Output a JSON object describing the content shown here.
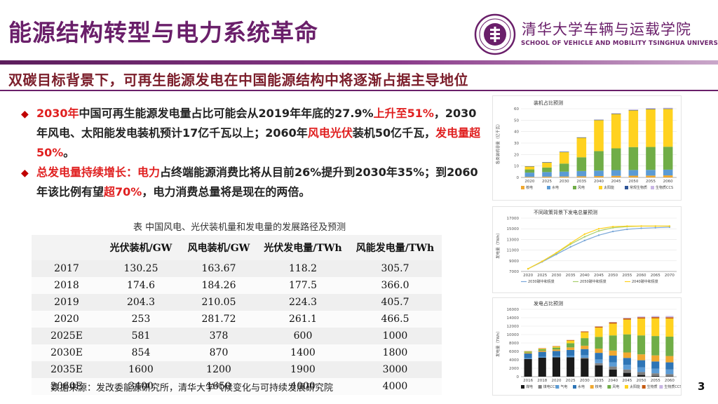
{
  "header": {
    "title": "能源结构转型与电力系统革命",
    "school_cn": "清华大学车辆与运载学院",
    "school_en": "SCHOOL OF VEHICLE AND MOBILITY TSINGHUA UNIVERSITY"
  },
  "subtitle": "双碳目标背景下，可再生能源发电在中国能源结构中将逐渐占据主导地位",
  "bullets": [
    {
      "parts": [
        {
          "t": "2030年",
          "red": true
        },
        {
          "t": "中国可再生能源发电量占比可能会从2019年年底的27.9%",
          "red": false
        },
        {
          "t": "上升至51%",
          "red": true
        },
        {
          "t": "，2030年风电、太阳能发电装机预计17亿千瓦以上；2060年",
          "red": false
        },
        {
          "t": "风电光伏",
          "red": true
        },
        {
          "t": "装机50亿千瓦，",
          "red": false
        },
        {
          "t": "发电量超50%",
          "red": true
        },
        {
          "t": "。",
          "red": false
        }
      ]
    },
    {
      "parts": [
        {
          "t": "总发电量持续增长：",
          "red": true
        },
        {
          "t": "电力",
          "red": true
        },
        {
          "t": "占终端能源消费比将从目前26%提升到2030年35%；到2060年该比例有望",
          "red": false
        },
        {
          "t": "超70%",
          "red": true
        },
        {
          "t": "，电力消费总量将是现在的两倍。",
          "red": false
        }
      ]
    }
  ],
  "table": {
    "caption": "表  中国风电、光伏装机量和发电量的发展路径及预测",
    "headers": [
      "",
      "光伏装机/GW",
      "风电装机/GW",
      "光伏发电量/TWh",
      "风能发电量/TWh"
    ],
    "rows": [
      [
        "2017",
        "130.25",
        "163.67",
        "118.2",
        "305.7"
      ],
      [
        "2018",
        "174.6",
        "184.26",
        "177.5",
        "366.0"
      ],
      [
        "2019",
        "204.3",
        "210.05",
        "224.3",
        "405.7"
      ],
      [
        "2020",
        "253",
        "281.72",
        "261.1",
        "466.5"
      ],
      [
        "2025E",
        "581",
        "378",
        "600",
        "1000"
      ],
      [
        "2030E",
        "854",
        "870",
        "1400",
        "1800"
      ],
      [
        "2035E",
        "1600",
        "1200",
        "1900",
        "3000"
      ],
      [
        "2060E",
        "3400",
        "1650",
        "4000",
        "4000"
      ]
    ]
  },
  "source": "数据来源：发改委能源研究所，清华大学气候变化与可持续发展研究院",
  "page_number": "3",
  "chart_data": [
    {
      "type": "bar",
      "stacked": true,
      "title": "装机占比预测",
      "ylabel": "各类装机容量（亿千瓦）",
      "categories": [
        "2020",
        "2025",
        "2030",
        "2035",
        "2040",
        "2045",
        "2050",
        "2055",
        "2060"
      ],
      "ylim": [
        0,
        60
      ],
      "yticks": [
        0,
        10,
        20,
        30,
        40,
        50,
        60
      ],
      "legend_position": "bottom",
      "series": [
        {
          "name": "核电",
          "color": "#f0a830",
          "values": [
            0.5,
            0.7,
            0.8,
            1.0,
            1.2,
            1.4,
            1.5,
            1.6,
            1.8
          ]
        },
        {
          "name": "水电",
          "color": "#5b9bd5",
          "values": [
            3.7,
            4.0,
            4.3,
            4.6,
            4.8,
            5.0,
            5.0,
            5.0,
            5.0
          ]
        },
        {
          "name": "风电",
          "color": "#70ad47",
          "values": [
            2.8,
            4.0,
            7.0,
            12.0,
            17.0,
            19.0,
            20.0,
            20.0,
            20.0
          ]
        },
        {
          "name": "太阳能",
          "color": "#ffd21f",
          "values": [
            2.5,
            4.3,
            10.0,
            17.0,
            27.0,
            30.0,
            32.0,
            33.0,
            33.0
          ]
        },
        {
          "name": "常规生物质",
          "color": "#2f5597",
          "values": [
            0.3,
            0.4,
            0.4,
            0.4,
            0.4,
            0.4,
            0.4,
            0.4,
            0.4
          ]
        },
        {
          "name": "生物质CCS",
          "color": "#c9b6e4",
          "values": [
            0,
            0,
            0,
            0.1,
            0.2,
            0.3,
            0.4,
            0.5,
            0.6
          ]
        }
      ]
    },
    {
      "type": "line",
      "title": "不同政策背景下发电总量预测",
      "ylabel": "发电量（TWh）",
      "x": [
        "2020",
        "2025",
        "2030",
        "2035",
        "2040",
        "2045",
        "2050",
        "2055",
        "2060",
        "2065",
        "2070"
      ],
      "ylim": [
        7000,
        17000
      ],
      "yticks": [
        7000,
        9000,
        11000,
        13000,
        15000,
        17000
      ],
      "legend_position": "bottom",
      "series": [
        {
          "name": "2030碳中和情景",
          "color": "#7aa7d8",
          "values": [
            7500,
            8800,
            10200,
            11600,
            12800,
            13800,
            14500,
            14900,
            15100,
            15200,
            15300
          ]
        },
        {
          "name": "2050碳中和情景",
          "color": "#a8cf6e",
          "values": [
            7500,
            8900,
            10400,
            12100,
            13500,
            14600,
            15200,
            15400,
            15500,
            15500,
            15500
          ]
        },
        {
          "name": "2040碳中和情景",
          "color": "#ffd21f",
          "values": [
            7500,
            8900,
            10500,
            12300,
            14000,
            15000,
            15400,
            15500,
            15500,
            15500,
            15500
          ]
        }
      ]
    },
    {
      "type": "bar",
      "stacked": true,
      "title": "发电占比预测",
      "ylabel": "发电量（TWh）",
      "categories": [
        "2016",
        "2018",
        "2020",
        "2025",
        "2030",
        "2035",
        "2040",
        "2045",
        "2050",
        "2055",
        "2060"
      ],
      "ylim": [
        0,
        16000
      ],
      "yticks": [
        0,
        2000,
        4000,
        6000,
        8000,
        10000,
        12000,
        14000,
        16000
      ],
      "legend_position": "bottom",
      "series": [
        {
          "name": "煤电",
          "color": "#1a1a1a",
          "values": [
            4200,
            4500,
            4600,
            4600,
            4300,
            2700,
            1700,
            900,
            400,
            200,
            100
          ]
        },
        {
          "name": "煤电CCS",
          "color": "#7f7f7f",
          "values": [
            0,
            0,
            0,
            0,
            200,
            500,
            700,
            800,
            700,
            600,
            500
          ]
        },
        {
          "name": "气电",
          "color": "#5b9bd5",
          "values": [
            200,
            250,
            300,
            400,
            600,
            900,
            1000,
            1100,
            1100,
            1100,
            1100
          ]
        },
        {
          "name": "水电",
          "color": "#2e75b6",
          "values": [
            1100,
            1150,
            1200,
            1350,
            1450,
            1550,
            1600,
            1650,
            1700,
            1700,
            1700
          ]
        },
        {
          "name": "核电",
          "color": "#f0a830",
          "values": [
            200,
            280,
            350,
            600,
            800,
            1000,
            1200,
            1300,
            1400,
            1450,
            1500
          ]
        },
        {
          "name": "风电",
          "color": "#70ad47",
          "values": [
            250,
            350,
            450,
            1000,
            1800,
            2800,
            3600,
            4300,
            4500,
            4600,
            4600
          ]
        },
        {
          "name": "太阳能",
          "color": "#ffd21f",
          "values": [
            70,
            150,
            250,
            600,
            1400,
            2200,
            2800,
            3500,
            4000,
            4200,
            4300
          ]
        },
        {
          "name": "生物质",
          "color": "#c55a11",
          "values": [
            50,
            80,
            100,
            150,
            200,
            250,
            300,
            300,
            300,
            300,
            300
          ]
        },
        {
          "name": "生物质CCS",
          "color": "#c9b6e4",
          "values": [
            0,
            0,
            0,
            0,
            0,
            50,
            100,
            150,
            200,
            250,
            300
          ]
        }
      ]
    }
  ]
}
